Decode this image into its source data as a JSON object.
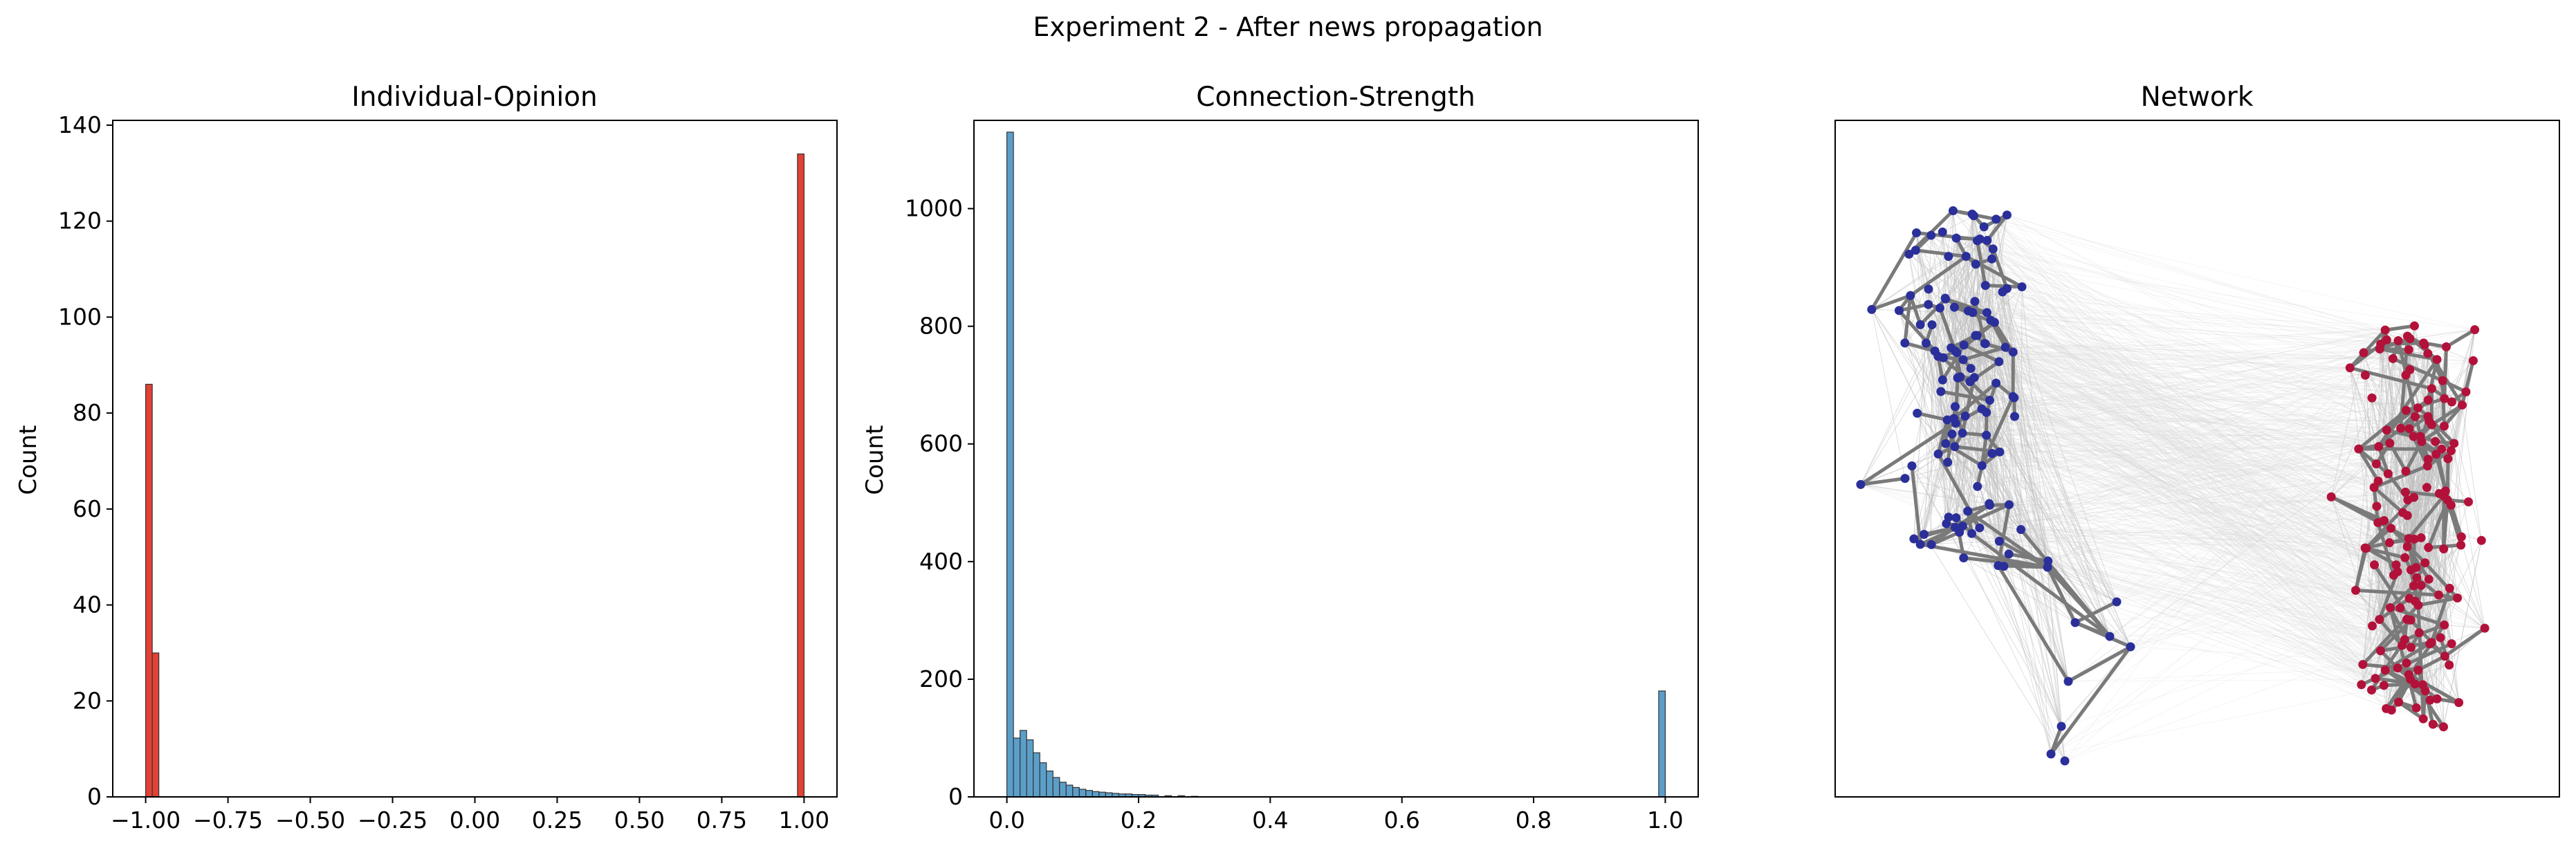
{
  "figure": {
    "suptitle": "Experiment 2 - After news propagation"
  },
  "panels": [
    {
      "title": "Individual-Opinion",
      "ylabel": "Count"
    },
    {
      "title": "Connection-Strength",
      "ylabel": "Count"
    },
    {
      "title": "Network"
    }
  ],
  "colors": {
    "opinion_bar": "#e24135",
    "strength_bar": "#5b9fc9",
    "bar_edge": "#333333",
    "node_left": "#2b2f9a",
    "node_right": "#b2123a",
    "edge_strong": "#7a7a7a",
    "edge_weak": "#d9d9d9"
  },
  "chart_data": [
    {
      "type": "bar",
      "title": "Individual-Opinion",
      "xlabel": "",
      "ylabel": "Count",
      "xlim": [
        -1.1,
        1.1
      ],
      "ylim": [
        0,
        141
      ],
      "xticks": [
        -1.0,
        -0.75,
        -0.5,
        -0.25,
        0.0,
        0.25,
        0.5,
        0.75,
        1.0
      ],
      "xtick_labels": [
        "−1.00",
        "−0.75",
        "−0.50",
        "−0.25",
        "0.00",
        "0.25",
        "0.50",
        "0.75",
        "1.00"
      ],
      "yticks": [
        0,
        20,
        40,
        60,
        80,
        100,
        120,
        140
      ],
      "ytick_labels": [
        "0",
        "20",
        "40",
        "60",
        "80",
        "100",
        "120",
        "140"
      ],
      "bin_width": 0.02,
      "bins": [
        {
          "x": -1.0,
          "count": 86
        },
        {
          "x": -0.98,
          "count": 30
        },
        {
          "x": 0.98,
          "count": 134
        }
      ],
      "grid": false
    },
    {
      "type": "bar",
      "title": "Connection-Strength",
      "xlabel": "",
      "ylabel": "Count",
      "xlim": [
        -0.05,
        1.05
      ],
      "ylim": [
        0,
        1150
      ],
      "xticks": [
        0.0,
        0.2,
        0.4,
        0.6,
        0.8,
        1.0
      ],
      "xtick_labels": [
        "0.0",
        "0.2",
        "0.4",
        "0.6",
        "0.8",
        "1.0"
      ],
      "yticks": [
        0,
        200,
        400,
        600,
        800,
        1000
      ],
      "ytick_labels": [
        "0",
        "200",
        "400",
        "600",
        "800",
        "1000"
      ],
      "bin_width": 0.01,
      "bins": [
        {
          "x": 0.0,
          "count": 1130
        },
        {
          "x": 0.01,
          "count": 100
        },
        {
          "x": 0.02,
          "count": 113
        },
        {
          "x": 0.03,
          "count": 97
        },
        {
          "x": 0.04,
          "count": 75
        },
        {
          "x": 0.05,
          "count": 58
        },
        {
          "x": 0.06,
          "count": 44
        },
        {
          "x": 0.07,
          "count": 33
        },
        {
          "x": 0.08,
          "count": 25
        },
        {
          "x": 0.09,
          "count": 20
        },
        {
          "x": 0.1,
          "count": 16
        },
        {
          "x": 0.11,
          "count": 13
        },
        {
          "x": 0.12,
          "count": 11
        },
        {
          "x": 0.13,
          "count": 9
        },
        {
          "x": 0.14,
          "count": 8
        },
        {
          "x": 0.15,
          "count": 7
        },
        {
          "x": 0.16,
          "count": 6
        },
        {
          "x": 0.17,
          "count": 5
        },
        {
          "x": 0.18,
          "count": 5
        },
        {
          "x": 0.19,
          "count": 4
        },
        {
          "x": 0.2,
          "count": 4
        },
        {
          "x": 0.21,
          "count": 3
        },
        {
          "x": 0.22,
          "count": 3
        },
        {
          "x": 0.24,
          "count": 2
        },
        {
          "x": 0.26,
          "count": 2
        },
        {
          "x": 0.28,
          "count": 1
        },
        {
          "x": 0.99,
          "count": 180
        }
      ],
      "grid": false
    }
  ]
}
